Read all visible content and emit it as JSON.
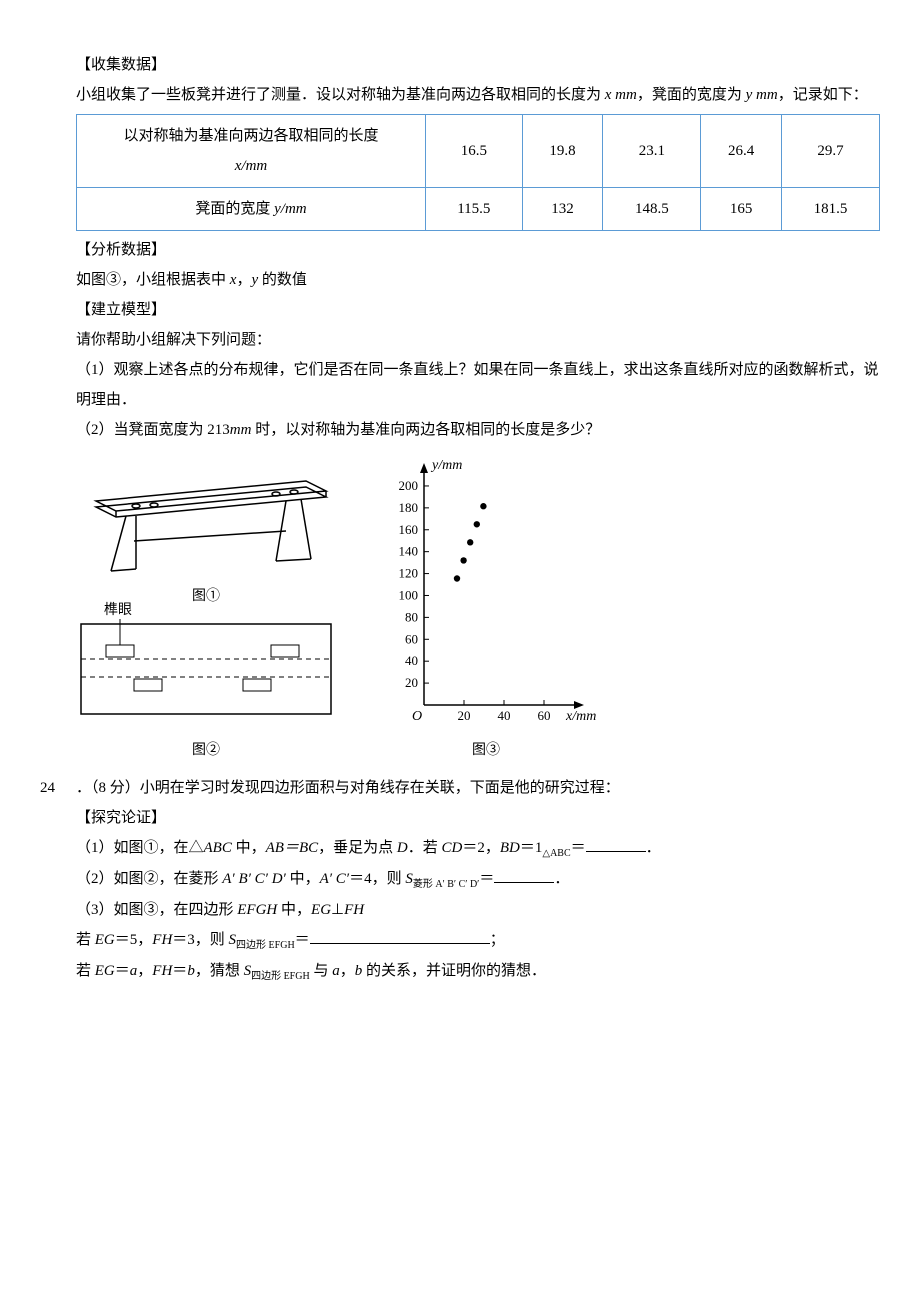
{
  "sections": {
    "collect_heading": "【收集数据】",
    "collect_body_1": "小组收集了一些板凳并进行了测量．设以对称轴为基准向两边各取相同的长度为 ",
    "collect_body_2": "，凳面的宽度为 ",
    "collect_body_3": "，记录如下：",
    "analyze_heading": "【分析数据】",
    "analyze_body_1": "如图③，小组根据表中 ",
    "analyze_body_2": "，",
    "analyze_body_3": " 的数值",
    "model_heading": "【建立模型】",
    "model_intro": "请你帮助小组解决下列问题：",
    "q1": "（1）观察上述各点的分布规律，它们是否在同一条直线上？如果在同一条直线上，求出这条直线所对应的函数解析式，说明理由．",
    "q2_a": "（2）当凳面宽度为 213",
    "q2_b": " 时，以对称轴为基准向两边各取相同的长度是多少？",
    "explore_heading": "【探究论证】",
    "p24_intro": "．（8 分）小明在学习时发现四边形面积与对角线存在关联，下面是他的研究过程：",
    "p24_num": "24",
    "p24_1a": "（1）如图①，在△",
    "p24_1b": " 中，",
    "p24_1c": "，垂足为点 ",
    "p24_1d": "．若 ",
    "p24_1e": "＝2，",
    "p24_1f": "＝1",
    "p24_1g": "＝",
    "p24_2a": "（2）如图②，在菱形 ",
    "p24_2b": " 中，",
    "p24_2c": "＝4，则 ",
    "p24_2d": "＝",
    "p24_3a": "（3）如图③，在四边形 ",
    "p24_3b": " 中，",
    "p24_3c": "⊥",
    "p24_4a": "若 ",
    "p24_4b": "＝5，",
    "p24_4c": "＝3，则 ",
    "p24_4d": "＝",
    "p24_4e": "；",
    "p24_5a": "若 ",
    "p24_5b": "＝",
    "p24_5c": "，",
    "p24_5d": "＝",
    "p24_5e": "，猜想 ",
    "p24_5f": " 与 ",
    "p24_5g": "，",
    "p24_5h": " 的关系，并证明你的猜想．",
    "period": "．"
  },
  "vars": {
    "x_mm": "x mm",
    "y_mm": "y mm",
    "x": "x",
    "y": "y",
    "mm": "mm",
    "ABC": "ABC",
    "AB_eq_BC": "AB＝BC",
    "D": "D",
    "CD": "CD",
    "BD": "BD",
    "tri_ABC_sub": "△ABC",
    "Apr": "A′ B′ C′ D′",
    "AprCpr": "A′ C′",
    "S": "S",
    "rhombus_sub": "菱形 A′ B′ C′ D′",
    "EFGH": "EFGH",
    "EG": "EG",
    "FH": "FH",
    "quad_sub": "四边形 EFGH",
    "a": "a",
    "b": "b"
  },
  "table": {
    "row1_label_top": "以对称轴为基准向两边各取相同的长度",
    "row1_label_bot": "x/mm",
    "row2_label": "凳面的宽度 y/mm",
    "row1_values": [
      "16.5",
      "19.8",
      "23.1",
      "26.4",
      "29.7"
    ],
    "row2_values": [
      "115.5",
      "132",
      "148.5",
      "165",
      "181.5"
    ]
  },
  "figures": {
    "fig1_label": "图①",
    "fig2_label": "图②",
    "fig3_label": "图③",
    "mortise_label": "榫眼",
    "chart": {
      "y_axis_label": "y/mm",
      "x_axis_label": "x/mm",
      "origin": "O",
      "y_ticks": [
        "20",
        "40",
        "60",
        "80",
        "100",
        "120",
        "140",
        "160",
        "180",
        "200"
      ],
      "x_ticks": [
        "20",
        "40",
        "60"
      ],
      "points": [
        {
          "x": 16.5,
          "y": 115.5
        },
        {
          "x": 19.8,
          "y": 132
        },
        {
          "x": 23.1,
          "y": 148.5
        },
        {
          "x": 26.4,
          "y": 165
        },
        {
          "x": 29.7,
          "y": 181.5
        }
      ]
    }
  }
}
